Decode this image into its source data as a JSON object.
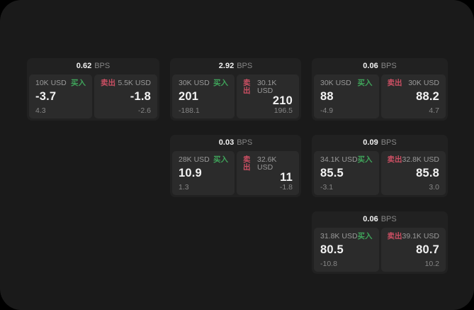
{
  "labels": {
    "bps_unit": "BPS",
    "buy": "买入",
    "sell": "卖出"
  },
  "colors": {
    "window_background": "#1a1a1a",
    "card_background": "#212121",
    "panel_background": "#2b2b2b",
    "buy_green": "#3fa35a",
    "sell_red": "#cb4f63",
    "primary_text": "#f2f2f2",
    "secondary_text": "#9a9a9a"
  },
  "cards": [
    {
      "bps": "0.62",
      "buy": {
        "amount": "10K USD",
        "price": "-3.7",
        "sub": "4.3"
      },
      "sell": {
        "amount": "5.5K USD",
        "price": "-1.8",
        "sub": "-2.6"
      }
    },
    {
      "bps": "2.92",
      "buy": {
        "amount": "30K USD",
        "price": "201",
        "sub": "-188.1"
      },
      "sell": {
        "amount": "30.1K USD",
        "price": "210",
        "sub": "196.5"
      }
    },
    {
      "bps": "0.06",
      "buy": {
        "amount": "30K USD",
        "price": "88",
        "sub": "-4.9"
      },
      "sell": {
        "amount": "30K USD",
        "price": "88.2",
        "sub": "4.7"
      }
    },
    {
      "bps": "0.03",
      "buy": {
        "amount": "28K USD",
        "price": "10.9",
        "sub": "1.3"
      },
      "sell": {
        "amount": "32.6K USD",
        "price": "11",
        "sub": "-1.8"
      }
    },
    {
      "bps": "0.09",
      "buy": {
        "amount": "34.1K USD",
        "price": "85.5",
        "sub": "-3.1"
      },
      "sell": {
        "amount": "32.8K USD",
        "price": "85.8",
        "sub": "3.0"
      }
    },
    {
      "bps": "0.06",
      "buy": {
        "amount": "31.8K USD",
        "price": "80.5",
        "sub": "-10.8"
      },
      "sell": {
        "amount": "39.1K USD",
        "price": "80.7",
        "sub": "10.2"
      }
    }
  ]
}
